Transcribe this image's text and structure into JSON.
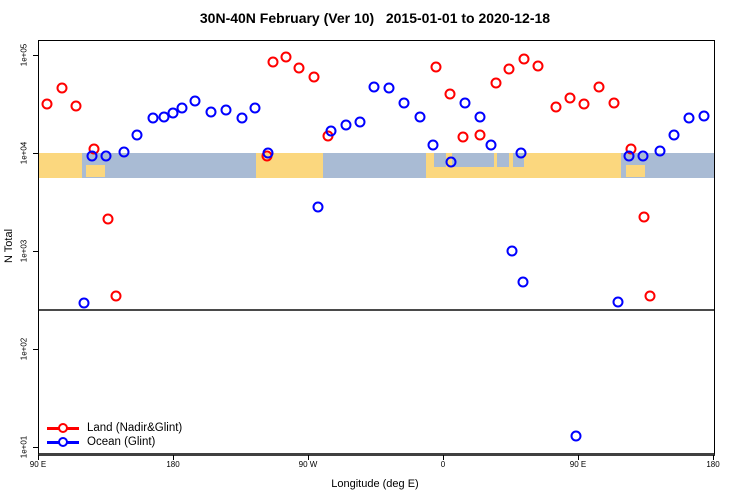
{
  "title": "30N-40N February (Ver 10)   2015-01-01 to 2020-12-18",
  "chart_data": {
    "type": "scatter",
    "title": "30N-40N February (Ver 10)   2015-01-01 to 2020-12-18",
    "xlabel": "Longitude (deg E)",
    "ylabel": "N Total",
    "x_axis": {
      "note": "degrees eastward from 90E; axis wraps across the dateline and prime meridian",
      "range_offset_deg": [
        0,
        450
      ],
      "tick_offsets_deg": [
        0,
        90,
        180,
        270,
        360,
        450
      ],
      "tick_labels": [
        "90 E",
        "180",
        "90 W",
        "0",
        "90 E",
        "180"
      ]
    },
    "y_axis": {
      "scale": "log10",
      "tick_values": [
        100000,
        10000,
        1000,
        100,
        10
      ],
      "tick_labels": [
        "1e+05",
        "1e+04",
        "1e+03",
        "1e+02",
        "1e+01"
      ],
      "log10_range": [
        0.95,
        5.15
      ]
    },
    "reference_line": {
      "log10_value": 2.41,
      "color": "#4a4a4a"
    },
    "map_band": {
      "description": "world-map strip of the 30N-40N latitude zone",
      "log10_top": 4.01,
      "log10_bottom": 3.755,
      "land_color": "#FBD77E",
      "ocean_color": "#A9BBD4",
      "ocean_segments_deg": [
        [
          28.7,
          144.7
        ],
        [
          189.3,
          258.0
        ],
        [
          388.0,
          450.0
        ]
      ],
      "sea_patches_top_deg": [
        [
          263,
          271
        ],
        [
          275,
          303
        ],
        [
          305,
          313
        ],
        [
          316,
          323
        ]
      ],
      "island_patches_bottom_deg": [
        [
          31,
          44
        ],
        [
          391,
          404
        ]
      ]
    },
    "series": [
      {
        "name": "Land (Nadir&Glint)",
        "color": "#ff0000",
        "points_deg_log10": [
          [
            5.3,
            4.51
          ],
          [
            15.3,
            4.67
          ],
          [
            24.7,
            4.49
          ],
          [
            36.7,
            4.05
          ],
          [
            46,
            3.34
          ],
          [
            51.3,
            2.55
          ],
          [
            152,
            3.98
          ],
          [
            156,
            4.94
          ],
          [
            164.7,
            4.99
          ],
          [
            173.3,
            4.87
          ],
          [
            183.3,
            4.78
          ],
          [
            192.7,
            4.18
          ],
          [
            264.7,
            4.88
          ],
          [
            274,
            4.61
          ],
          [
            282.7,
            4.17
          ],
          [
            294,
            4.19
          ],
          [
            304.7,
            4.72
          ],
          [
            313.3,
            4.86
          ],
          [
            323.3,
            4.97
          ],
          [
            332.7,
            4.9
          ],
          [
            344.7,
            4.48
          ],
          [
            354,
            4.57
          ],
          [
            363.3,
            4.51
          ],
          [
            373.3,
            4.68
          ],
          [
            383.3,
            4.52
          ],
          [
            394.7,
            4.05
          ],
          [
            403.3,
            3.36
          ],
          [
            407.3,
            2.55
          ]
        ]
      },
      {
        "name": "Ocean (Glint)",
        "color": "#0000ff",
        "points_deg_log10": [
          [
            30,
            2.48
          ],
          [
            35.3,
            3.98
          ],
          [
            44.7,
            3.98
          ],
          [
            56.7,
            4.02
          ],
          [
            65.3,
            4.19
          ],
          [
            76,
            4.37
          ],
          [
            83.3,
            4.38
          ],
          [
            89.3,
            4.42
          ],
          [
            95.3,
            4.47
          ],
          [
            104,
            4.54
          ],
          [
            114.7,
            4.43
          ],
          [
            124.7,
            4.45
          ],
          [
            135.3,
            4.36
          ],
          [
            144,
            4.47
          ],
          [
            152.7,
            4.01
          ],
          [
            186,
            3.46
          ],
          [
            194.7,
            4.23
          ],
          [
            204.7,
            4.29
          ],
          [
            214,
            4.32
          ],
          [
            223.3,
            4.68
          ],
          [
            233.3,
            4.67
          ],
          [
            243.3,
            4.52
          ],
          [
            254,
            4.38
          ],
          [
            262.7,
            4.09
          ],
          [
            274.7,
            3.92
          ],
          [
            284,
            4.52
          ],
          [
            294,
            4.38
          ],
          [
            301.3,
            4.09
          ],
          [
            315.3,
            3.01
          ],
          [
            321.3,
            4.01
          ],
          [
            322.7,
            2.69
          ],
          [
            358,
            1.12
          ],
          [
            386,
            2.49
          ],
          [
            393.3,
            3.98
          ],
          [
            402.7,
            3.98
          ],
          [
            414,
            4.03
          ],
          [
            423.3,
            4.19
          ],
          [
            433.3,
            4.37
          ],
          [
            443.3,
            4.39
          ]
        ]
      }
    ],
    "legend_position": "bottom-left"
  }
}
